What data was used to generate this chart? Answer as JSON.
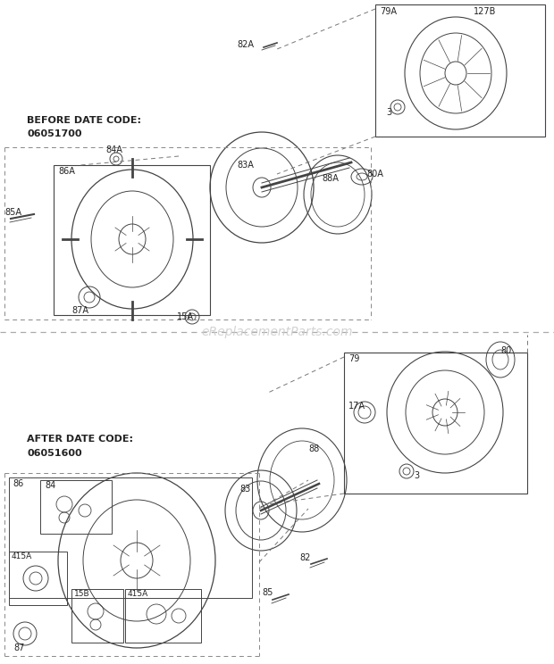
{
  "bg_color": "#ffffff",
  "line_color": "#444444",
  "watermark": "eReplacementParts.com",
  "watermark_color": "#cccccc",
  "before_label_line1": "BEFORE DATE CODE:",
  "before_label_line2": "06051700",
  "after_label_line1": "AFTER DATE CODE:",
  "after_label_line2": "06051600"
}
